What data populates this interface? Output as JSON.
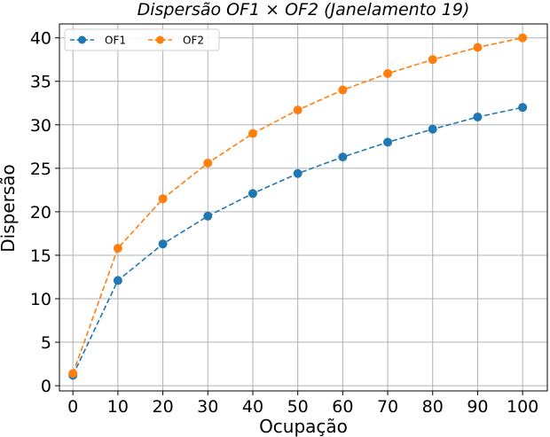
{
  "chart_data": {
    "type": "line",
    "title": "Dispersão OF1 × OF2 (Janelamento 19)",
    "xlabel": "Ocupação",
    "ylabel": "Dispersão",
    "x": [
      0,
      10,
      20,
      30,
      40,
      50,
      60,
      70,
      80,
      90,
      100
    ],
    "xlim": [
      -3,
      105.5
    ],
    "ylim": [
      -0.6,
      41.6
    ],
    "xticks": [
      "0",
      "10",
      "20",
      "30",
      "40",
      "50",
      "60",
      "70",
      "80",
      "90",
      "100"
    ],
    "yticks": [
      "0",
      "5",
      "10",
      "15",
      "20",
      "25",
      "30",
      "35",
      "40"
    ],
    "grid": true,
    "legend_position": "top-left",
    "series": [
      {
        "name": "OF1",
        "color": "#1f77b4",
        "values": [
          1.2,
          12.1,
          16.3,
          19.5,
          22.1,
          24.4,
          26.3,
          28.0,
          29.5,
          30.9,
          32.0
        ]
      },
      {
        "name": "OF2",
        "color": "#ff7f0e",
        "values": [
          1.4,
          15.8,
          21.5,
          25.6,
          29.0,
          31.7,
          34.0,
          35.9,
          37.5,
          38.9,
          40.0
        ]
      }
    ]
  }
}
